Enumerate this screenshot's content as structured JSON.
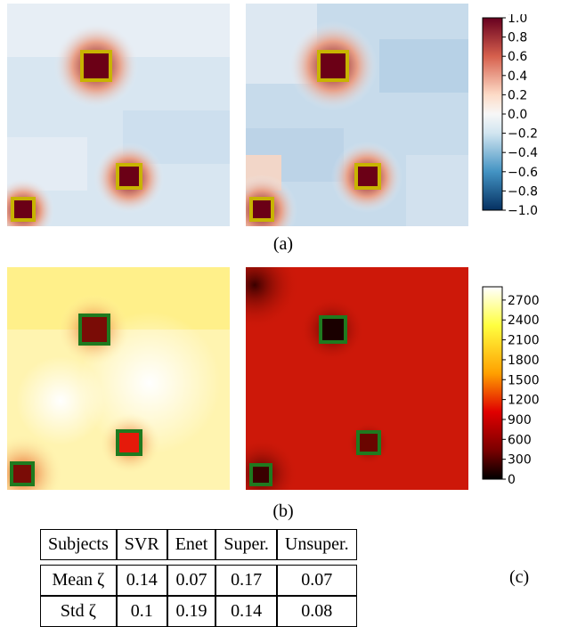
{
  "panel_a": {
    "caption": "(a)",
    "colorbar_ticks": [
      "1.0",
      "0.8",
      "0.6",
      "0.4",
      "0.2",
      "0.0",
      "−0.2",
      "−0.4",
      "−0.6",
      "−0.8",
      "−1.0"
    ],
    "box_color": "#c8b400",
    "hot_color": "#6b0016"
  },
  "panel_b": {
    "caption": "(b)",
    "colorbar_ticks": [
      "2700",
      "2400",
      "2100",
      "1800",
      "1500",
      "1200",
      "900",
      "600",
      "300",
      "0"
    ],
    "box_color": "#1f7a1f"
  },
  "table": {
    "label": "(c)",
    "header": [
      "Subjects",
      "SVR",
      "Enet",
      "Super.",
      "Unsuper."
    ],
    "rows": [
      [
        "Mean ζ",
        "0.14",
        "0.07",
        "0.17",
        "0.07"
      ],
      [
        "Std ζ",
        "0.1",
        "0.19",
        "0.14",
        "0.08"
      ]
    ]
  }
}
